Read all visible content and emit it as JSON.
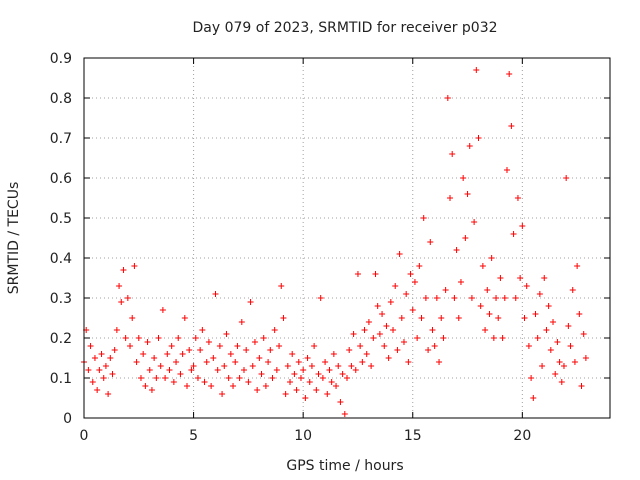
{
  "chart_data": {
    "type": "scatter",
    "title": "Day 079 of 2023, SRMTID for receiver p032",
    "xlabel": "GPS time / hours",
    "ylabel": "SRMTID / TECUs",
    "xlim": [
      0,
      24
    ],
    "ylim": [
      0,
      0.9
    ],
    "xticks": [
      0,
      5,
      10,
      15,
      20
    ],
    "xtick_labels": [
      "0",
      "5",
      "10",
      "15",
      "20"
    ],
    "yticks": [
      0,
      0.1,
      0.2,
      0.3,
      0.4,
      0.5,
      0.6,
      0.7,
      0.8,
      0.9
    ],
    "ytick_labels": [
      "0",
      "0.1",
      "0.2",
      "0.3",
      "0.4",
      "0.5",
      "0.6",
      "0.7",
      "0.8",
      "0.9"
    ],
    "grid": true,
    "marker": "+",
    "color": "#ff0000",
    "series": [
      {
        "name": "p032",
        "points": [
          [
            0.0,
            0.14
          ],
          [
            0.1,
            0.22
          ],
          [
            0.2,
            0.12
          ],
          [
            0.3,
            0.18
          ],
          [
            0.4,
            0.09
          ],
          [
            0.5,
            0.15
          ],
          [
            0.6,
            0.07
          ],
          [
            0.7,
            0.12
          ],
          [
            0.8,
            0.16
          ],
          [
            0.9,
            0.1
          ],
          [
            1.0,
            0.13
          ],
          [
            1.1,
            0.06
          ],
          [
            1.2,
            0.15
          ],
          [
            1.3,
            0.11
          ],
          [
            1.4,
            0.17
          ],
          [
            1.5,
            0.22
          ],
          [
            1.6,
            0.33
          ],
          [
            1.7,
            0.29
          ],
          [
            1.8,
            0.37
          ],
          [
            1.9,
            0.2
          ],
          [
            2.0,
            0.3
          ],
          [
            2.1,
            0.18
          ],
          [
            2.2,
            0.25
          ],
          [
            2.3,
            0.38
          ],
          [
            2.4,
            0.14
          ],
          [
            2.5,
            0.2
          ],
          [
            2.6,
            0.1
          ],
          [
            2.7,
            0.16
          ],
          [
            2.8,
            0.08
          ],
          [
            2.9,
            0.19
          ],
          [
            3.0,
            0.12
          ],
          [
            3.1,
            0.07
          ],
          [
            3.2,
            0.15
          ],
          [
            3.3,
            0.1
          ],
          [
            3.4,
            0.2
          ],
          [
            3.5,
            0.13
          ],
          [
            3.6,
            0.27
          ],
          [
            3.7,
            0.1
          ],
          [
            3.8,
            0.16
          ],
          [
            3.9,
            0.12
          ],
          [
            4.0,
            0.18
          ],
          [
            4.1,
            0.09
          ],
          [
            4.2,
            0.14
          ],
          [
            4.3,
            0.2
          ],
          [
            4.4,
            0.11
          ],
          [
            4.5,
            0.16
          ],
          [
            4.6,
            0.25
          ],
          [
            4.7,
            0.08
          ],
          [
            4.8,
            0.17
          ],
          [
            4.9,
            0.12
          ],
          [
            5.0,
            0.13
          ],
          [
            5.1,
            0.2
          ],
          [
            5.2,
            0.1
          ],
          [
            5.3,
            0.17
          ],
          [
            5.4,
            0.22
          ],
          [
            5.5,
            0.09
          ],
          [
            5.6,
            0.14
          ],
          [
            5.7,
            0.19
          ],
          [
            5.8,
            0.08
          ],
          [
            5.9,
            0.15
          ],
          [
            6.0,
            0.31
          ],
          [
            6.1,
            0.12
          ],
          [
            6.2,
            0.18
          ],
          [
            6.3,
            0.06
          ],
          [
            6.4,
            0.13
          ],
          [
            6.5,
            0.21
          ],
          [
            6.6,
            0.1
          ],
          [
            6.7,
            0.16
          ],
          [
            6.8,
            0.08
          ],
          [
            6.9,
            0.14
          ],
          [
            7.0,
            0.18
          ],
          [
            7.1,
            0.1
          ],
          [
            7.2,
            0.24
          ],
          [
            7.3,
            0.12
          ],
          [
            7.4,
            0.17
          ],
          [
            7.5,
            0.09
          ],
          [
            7.6,
            0.29
          ],
          [
            7.7,
            0.13
          ],
          [
            7.8,
            0.19
          ],
          [
            7.9,
            0.07
          ],
          [
            8.0,
            0.15
          ],
          [
            8.1,
            0.11
          ],
          [
            8.2,
            0.2
          ],
          [
            8.3,
            0.08
          ],
          [
            8.4,
            0.14
          ],
          [
            8.5,
            0.17
          ],
          [
            8.6,
            0.1
          ],
          [
            8.7,
            0.22
          ],
          [
            8.8,
            0.12
          ],
          [
            8.9,
            0.18
          ],
          [
            9.0,
            0.33
          ],
          [
            9.1,
            0.25
          ],
          [
            9.2,
            0.06
          ],
          [
            9.3,
            0.13
          ],
          [
            9.4,
            0.09
          ],
          [
            9.5,
            0.16
          ],
          [
            9.6,
            0.11
          ],
          [
            9.7,
            0.07
          ],
          [
            9.8,
            0.14
          ],
          [
            9.9,
            0.1
          ],
          [
            10.0,
            0.12
          ],
          [
            10.1,
            0.05
          ],
          [
            10.2,
            0.15
          ],
          [
            10.3,
            0.09
          ],
          [
            10.4,
            0.13
          ],
          [
            10.5,
            0.18
          ],
          [
            10.6,
            0.07
          ],
          [
            10.7,
            0.11
          ],
          [
            10.8,
            0.3
          ],
          [
            10.9,
            0.1
          ],
          [
            11.0,
            0.14
          ],
          [
            11.1,
            0.06
          ],
          [
            11.2,
            0.12
          ],
          [
            11.3,
            0.09
          ],
          [
            11.4,
            0.16
          ],
          [
            11.5,
            0.08
          ],
          [
            11.6,
            0.13
          ],
          [
            11.7,
            0.04
          ],
          [
            11.8,
            0.11
          ],
          [
            11.9,
            0.01
          ],
          [
            12.0,
            0.1
          ],
          [
            12.1,
            0.17
          ],
          [
            12.2,
            0.13
          ],
          [
            12.3,
            0.21
          ],
          [
            12.4,
            0.12
          ],
          [
            12.5,
            0.36
          ],
          [
            12.6,
            0.18
          ],
          [
            12.7,
            0.14
          ],
          [
            12.8,
            0.22
          ],
          [
            12.9,
            0.16
          ],
          [
            13.0,
            0.24
          ],
          [
            13.1,
            0.13
          ],
          [
            13.2,
            0.2
          ],
          [
            13.3,
            0.36
          ],
          [
            13.4,
            0.28
          ],
          [
            13.5,
            0.21
          ],
          [
            13.6,
            0.26
          ],
          [
            13.7,
            0.18
          ],
          [
            13.8,
            0.23
          ],
          [
            13.9,
            0.15
          ],
          [
            14.0,
            0.29
          ],
          [
            14.1,
            0.22
          ],
          [
            14.2,
            0.33
          ],
          [
            14.3,
            0.17
          ],
          [
            14.4,
            0.41
          ],
          [
            14.5,
            0.25
          ],
          [
            14.6,
            0.19
          ],
          [
            14.7,
            0.31
          ],
          [
            14.8,
            0.14
          ],
          [
            14.9,
            0.36
          ],
          [
            15.0,
            0.27
          ],
          [
            15.1,
            0.34
          ],
          [
            15.2,
            0.2
          ],
          [
            15.3,
            0.38
          ],
          [
            15.4,
            0.25
          ],
          [
            15.5,
            0.5
          ],
          [
            15.6,
            0.3
          ],
          [
            15.7,
            0.17
          ],
          [
            15.8,
            0.44
          ],
          [
            15.9,
            0.22
          ],
          [
            16.0,
            0.18
          ],
          [
            16.1,
            0.3
          ],
          [
            16.2,
            0.14
          ],
          [
            16.3,
            0.25
          ],
          [
            16.4,
            0.2
          ],
          [
            16.5,
            0.32
          ],
          [
            16.6,
            0.8
          ],
          [
            16.7,
            0.55
          ],
          [
            16.8,
            0.66
          ],
          [
            16.9,
            0.3
          ],
          [
            17.0,
            0.42
          ],
          [
            17.1,
            0.25
          ],
          [
            17.2,
            0.34
          ],
          [
            17.3,
            0.6
          ],
          [
            17.4,
            0.45
          ],
          [
            17.5,
            0.56
          ],
          [
            17.6,
            0.68
          ],
          [
            17.7,
            0.3
          ],
          [
            17.8,
            0.49
          ],
          [
            17.9,
            0.87
          ],
          [
            18.0,
            0.7
          ],
          [
            18.1,
            0.28
          ],
          [
            18.2,
            0.38
          ],
          [
            18.3,
            0.22
          ],
          [
            18.4,
            0.32
          ],
          [
            18.5,
            0.26
          ],
          [
            18.6,
            0.4
          ],
          [
            18.7,
            0.2
          ],
          [
            18.8,
            0.3
          ],
          [
            18.9,
            0.25
          ],
          [
            19.0,
            0.35
          ],
          [
            19.1,
            0.2
          ],
          [
            19.2,
            0.3
          ],
          [
            19.3,
            0.62
          ],
          [
            19.4,
            0.86
          ],
          [
            19.5,
            0.73
          ],
          [
            19.6,
            0.46
          ],
          [
            19.7,
            0.3
          ],
          [
            19.8,
            0.55
          ],
          [
            19.9,
            0.35
          ],
          [
            20.0,
            0.48
          ],
          [
            20.1,
            0.25
          ],
          [
            20.2,
            0.33
          ],
          [
            20.3,
            0.18
          ],
          [
            20.4,
            0.1
          ],
          [
            20.5,
            0.05
          ],
          [
            20.6,
            0.26
          ],
          [
            20.7,
            0.2
          ],
          [
            20.8,
            0.31
          ],
          [
            20.9,
            0.13
          ],
          [
            21.0,
            0.35
          ],
          [
            21.1,
            0.22
          ],
          [
            21.2,
            0.28
          ],
          [
            21.3,
            0.17
          ],
          [
            21.4,
            0.24
          ],
          [
            21.5,
            0.11
          ],
          [
            21.6,
            0.19
          ],
          [
            21.7,
            0.14
          ],
          [
            21.8,
            0.09
          ],
          [
            21.9,
            0.13
          ],
          [
            22.0,
            0.6
          ],
          [
            22.1,
            0.23
          ],
          [
            22.2,
            0.18
          ],
          [
            22.3,
            0.32
          ],
          [
            22.4,
            0.14
          ],
          [
            22.5,
            0.38
          ],
          [
            22.6,
            0.26
          ],
          [
            22.7,
            0.08
          ],
          [
            22.8,
            0.21
          ],
          [
            22.9,
            0.15
          ]
        ]
      }
    ]
  }
}
